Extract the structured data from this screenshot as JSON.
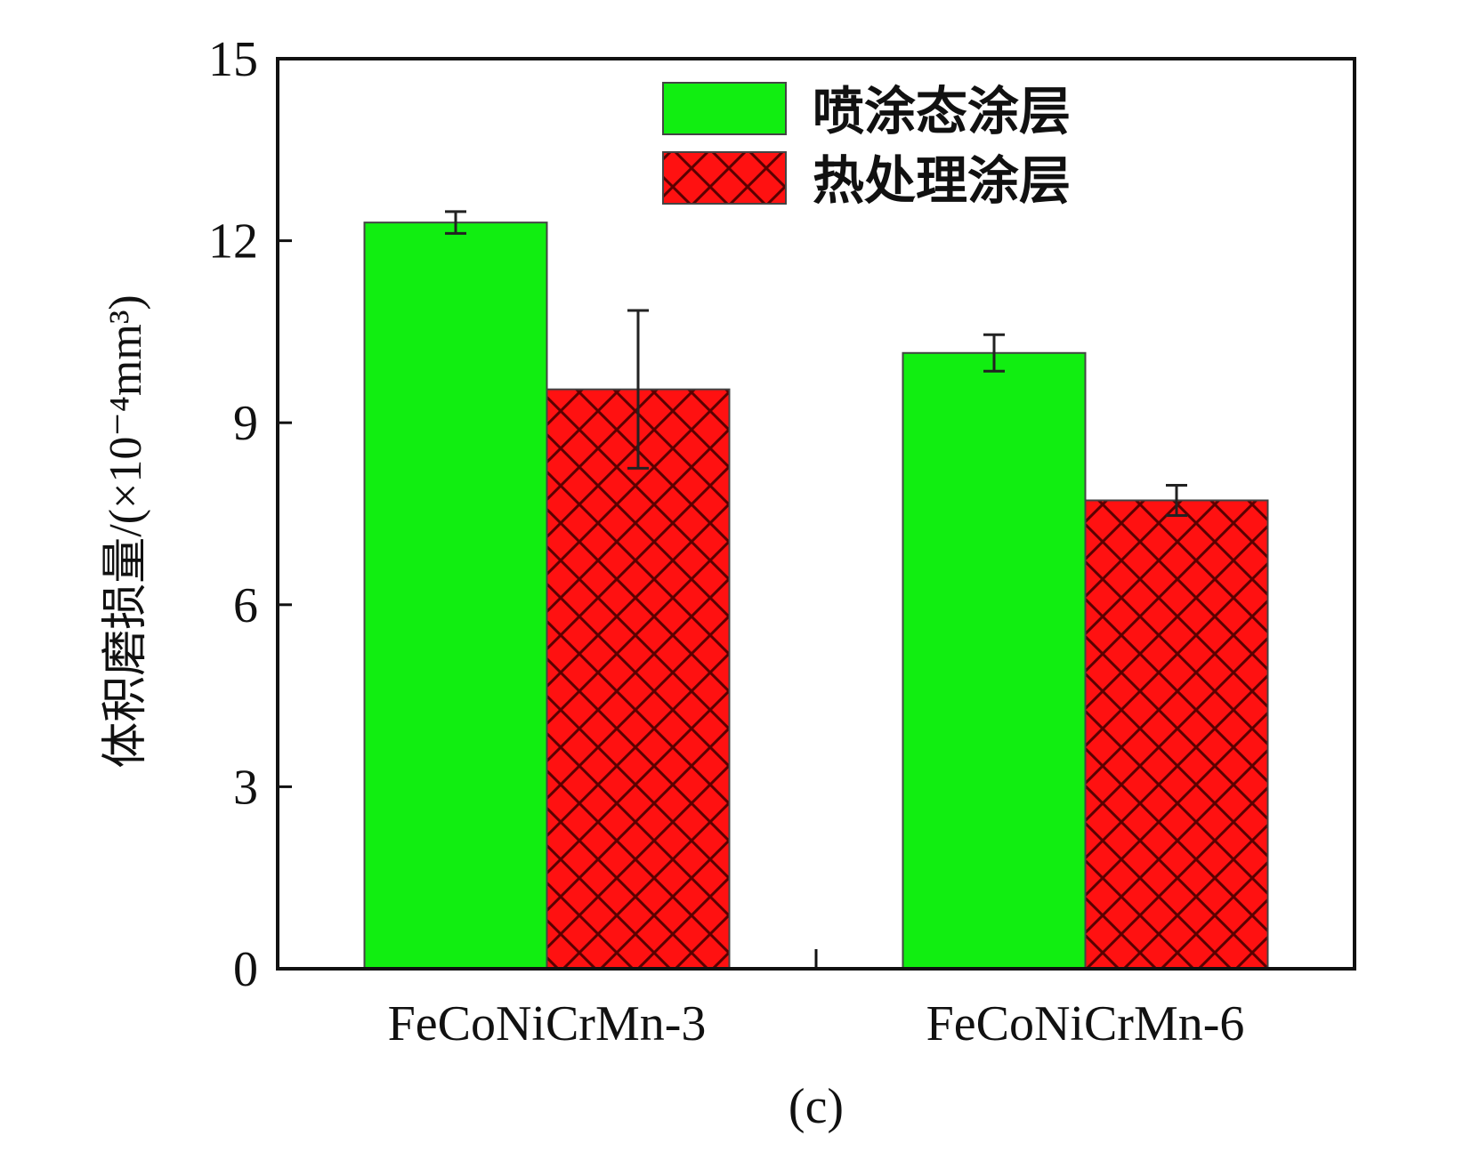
{
  "chart_data": {
    "type": "bar",
    "categories": [
      "FeCoNiCrMn-3",
      "FeCoNiCrMn-6"
    ],
    "series": [
      {
        "name": "喷涂态涂层",
        "values": [
          12.3,
          10.15
        ],
        "errors": [
          0.18,
          0.3
        ],
        "color": "#11ee11",
        "pattern": "solid"
      },
      {
        "name": "热处理涂层",
        "values": [
          9.55,
          7.72
        ],
        "errors": [
          1.3,
          0.25
        ],
        "color": "#ff1111",
        "pattern": "crosshatch"
      }
    ],
    "ylabel": "体积磨损量/(×10⁻⁴mm³)",
    "xlabel": "",
    "ylim": [
      0,
      15
    ],
    "yticks": [
      0,
      3,
      6,
      9,
      12,
      15
    ],
    "legend_position": "top-right",
    "grid": false,
    "panel_label": "(c)"
  }
}
